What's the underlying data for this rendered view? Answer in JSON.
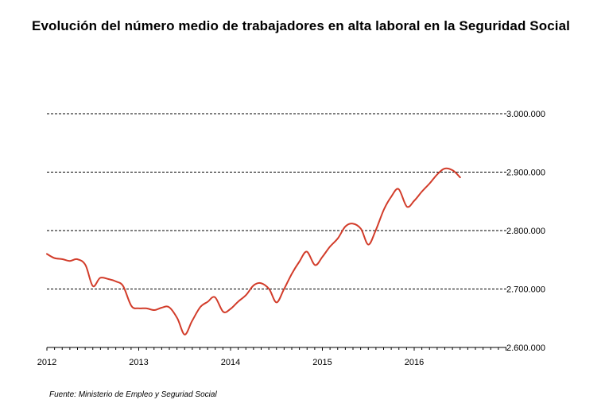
{
  "title": "Evolución del número medio de trabajadores en alta laboral en la Seguridad Social",
  "source": "Fuente: Ministerio de Empleo y Seguriad Social",
  "chart_data": {
    "type": "line",
    "title": "Evolución del número medio de trabajadores en alta laboral en la Seguridad Social",
    "xlabel": "",
    "ylabel": "",
    "x_ticks": [
      "2012",
      "2013",
      "2014",
      "2015",
      "2016"
    ],
    "y_ticks": [
      "2.600.000",
      "2.700.000",
      "2.800.000",
      "2.900.000",
      "3.000.000"
    ],
    "xlim": [
      2012.0,
      2017.0
    ],
    "ylim": [
      2600000,
      3000000
    ],
    "grid": "horizontal dashed lines at 2.700.000, 2.800.000, 2.900.000 and 3.000.000",
    "y_axis_side": "right",
    "series": [
      {
        "color": "#d23c2a",
        "x": [
          2012.0,
          2012.08,
          2012.17,
          2012.25,
          2012.33,
          2012.42,
          2012.5,
          2012.58,
          2012.67,
          2012.75,
          2012.83,
          2012.92,
          2013.0,
          2013.08,
          2013.17,
          2013.25,
          2013.33,
          2013.42,
          2013.5,
          2013.58,
          2013.67,
          2013.75,
          2013.83,
          2013.92,
          2014.0,
          2014.08,
          2014.17,
          2014.25,
          2014.33,
          2014.42,
          2014.5,
          2014.58,
          2014.67,
          2014.75,
          2014.83,
          2014.92,
          2015.0,
          2015.08,
          2015.17,
          2015.25,
          2015.33,
          2015.42,
          2015.5,
          2015.58,
          2015.67,
          2015.75,
          2015.83,
          2015.92,
          2016.0,
          2016.08,
          2016.17,
          2016.25,
          2016.33,
          2016.42,
          2016.5
        ],
        "values": [
          2760000,
          2753000,
          2751000,
          2748000,
          2751000,
          2741000,
          2705000,
          2719000,
          2717000,
          2713000,
          2705000,
          2671000,
          2667000,
          2667000,
          2664000,
          2668000,
          2669000,
          2650000,
          2622000,
          2645000,
          2669000,
          2678000,
          2686000,
          2661000,
          2666000,
          2678000,
          2690000,
          2706000,
          2710000,
          2700000,
          2677000,
          2699000,
          2727000,
          2747000,
          2764000,
          2741000,
          2755000,
          2772000,
          2787000,
          2807000,
          2812000,
          2803000,
          2776000,
          2800000,
          2836000,
          2858000,
          2871000,
          2841000,
          2851000,
          2866000,
          2881000,
          2896000,
          2906000,
          2903000,
          2891000
        ]
      }
    ]
  }
}
